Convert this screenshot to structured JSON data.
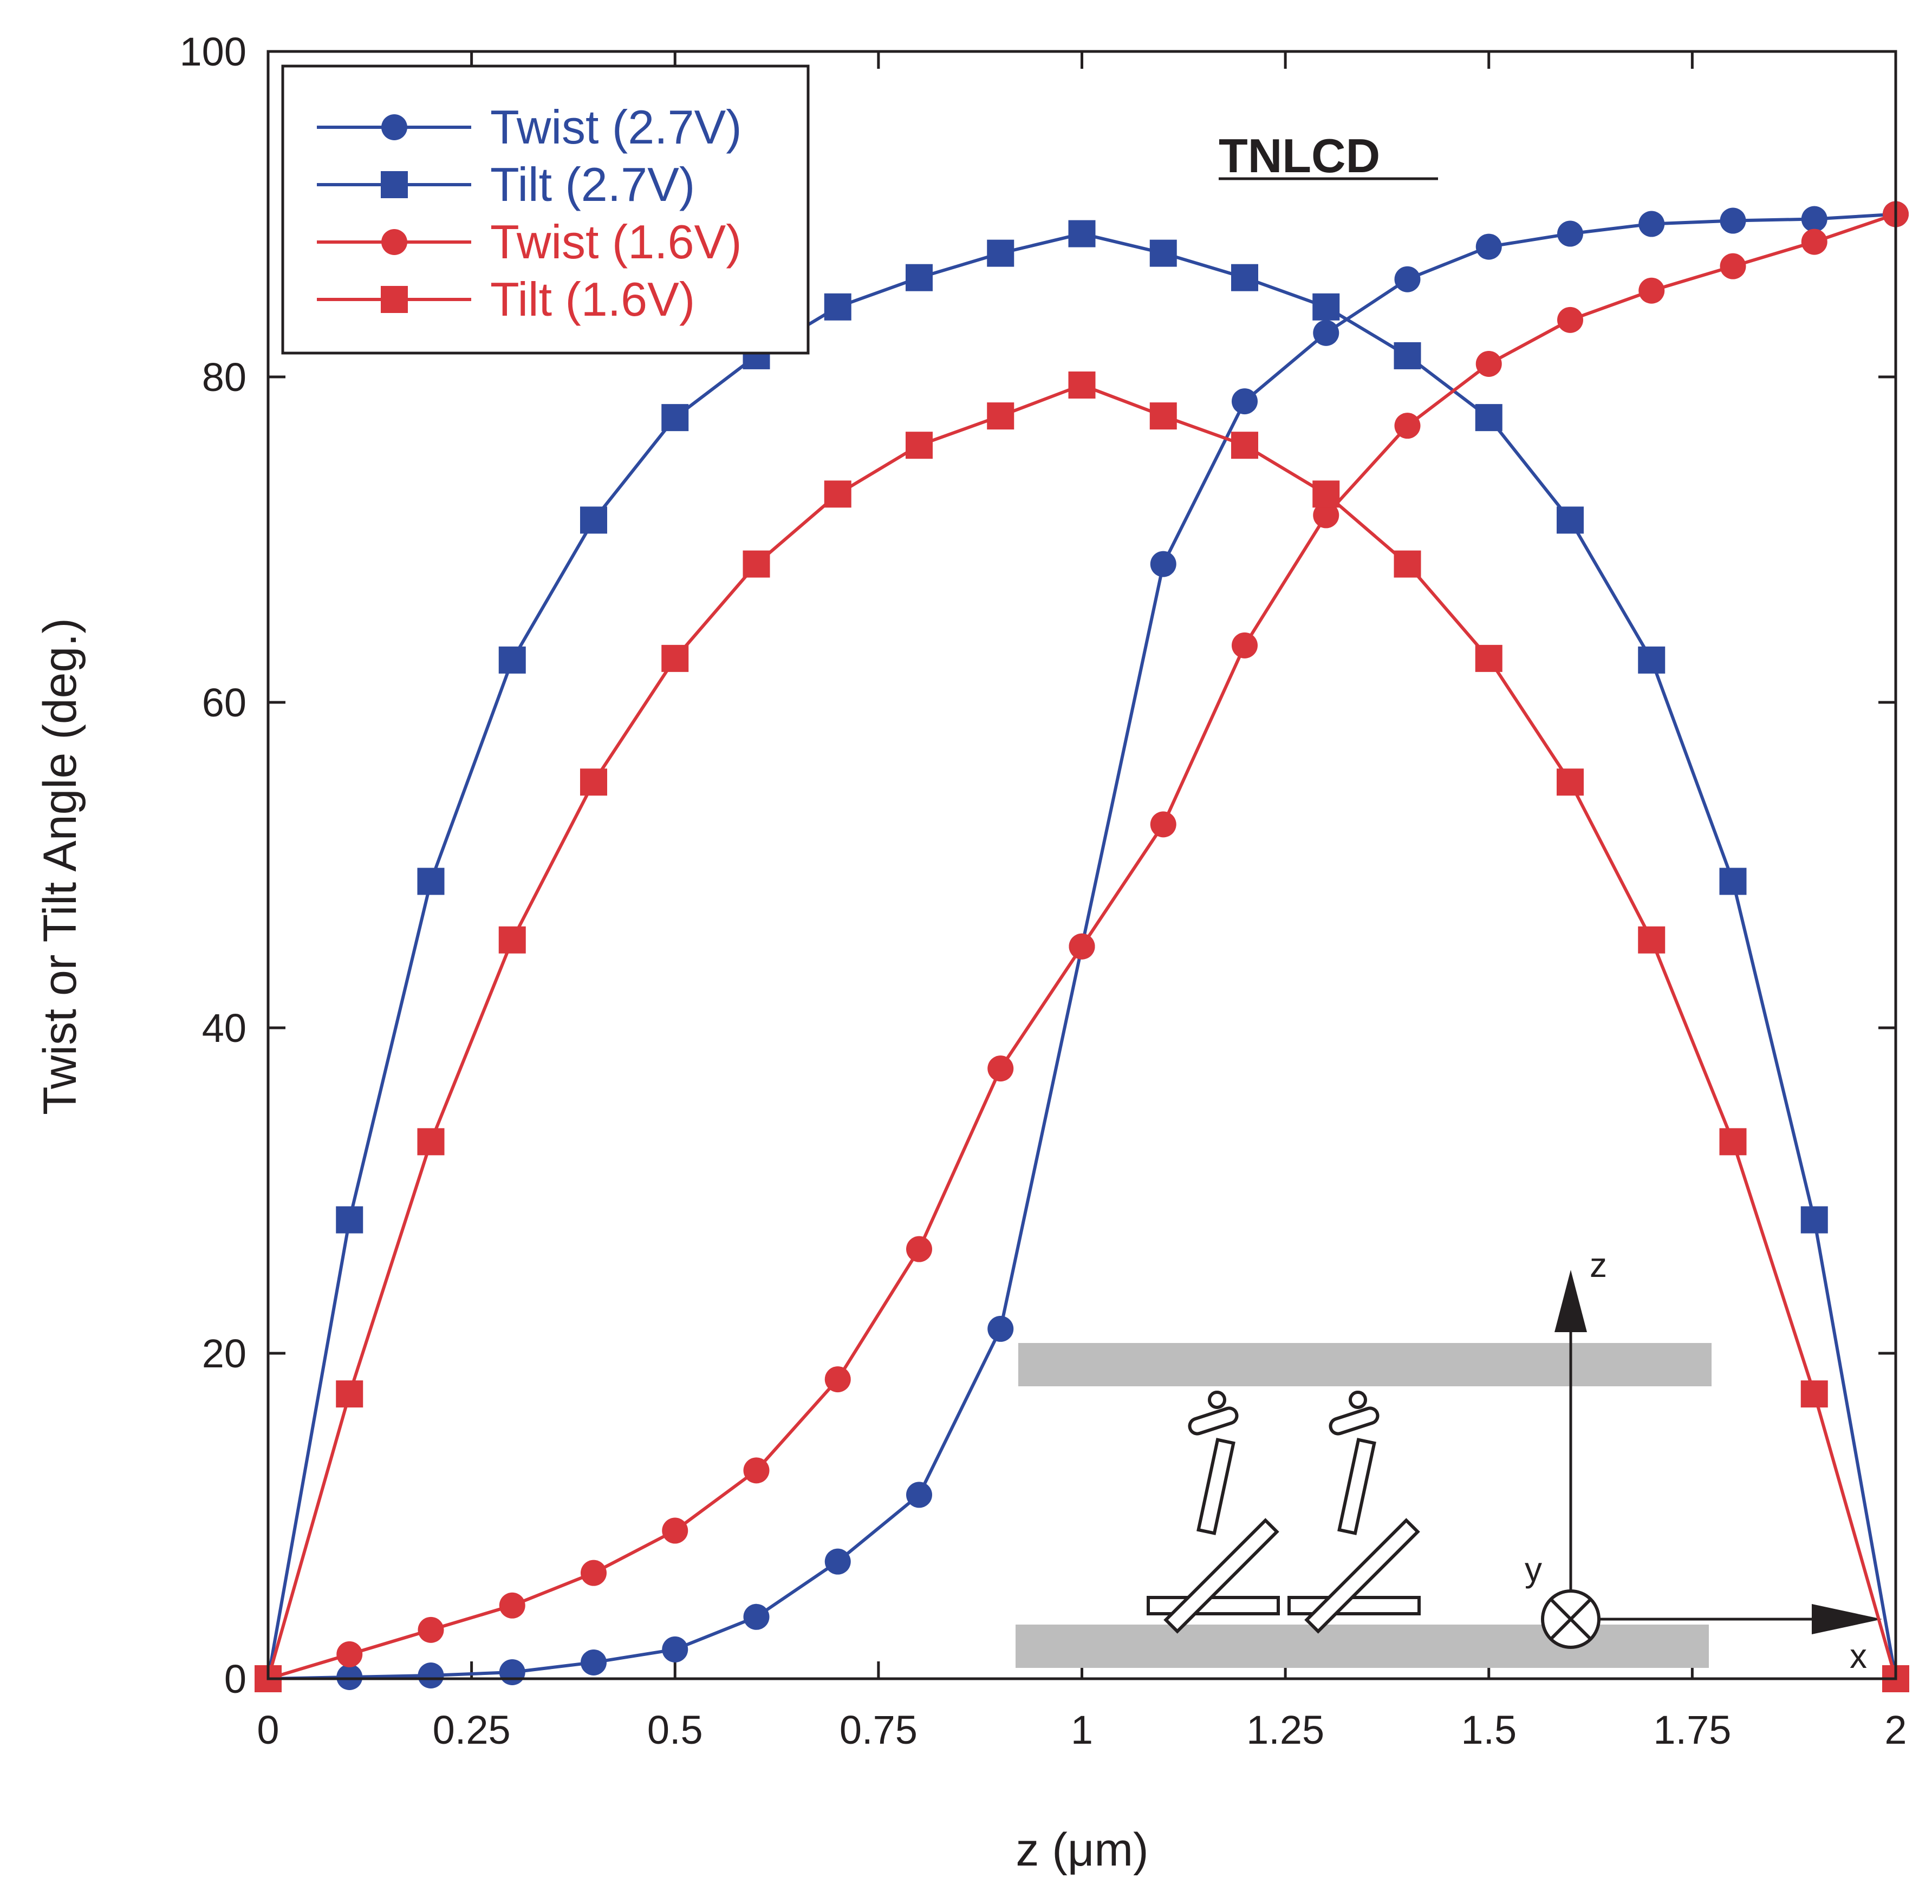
{
  "chart_data": {
    "type": "line",
    "title": "",
    "annotation": "TNLCD",
    "xlabel": "z  (μm)",
    "ylabel": "Twist or Tilt Angle (deg.)",
    "xlim": [
      0,
      2
    ],
    "ylim": [
      0,
      100
    ],
    "grid": false,
    "legend_position": "top-left",
    "x_ticks": [
      {
        "value": 0,
        "label": "0"
      },
      {
        "value": 0.25,
        "label": "0.25"
      },
      {
        "value": 0.5,
        "label": "0.5"
      },
      {
        "value": 0.75,
        "label": "0.75"
      },
      {
        "value": 1,
        "label": "1"
      },
      {
        "value": 1.25,
        "label": "1.25"
      },
      {
        "value": 1.5,
        "label": "1.5"
      },
      {
        "value": 1.75,
        "label": "1.75"
      },
      {
        "value": 2,
        "label": "2"
      }
    ],
    "y_ticks": [
      {
        "value": 0,
        "label": "0"
      },
      {
        "value": 20,
        "label": "20"
      },
      {
        "value": 40,
        "label": "40"
      },
      {
        "value": 60,
        "label": "60"
      },
      {
        "value": 80,
        "label": "80"
      },
      {
        "value": 100,
        "label": "100"
      }
    ],
    "x": [
      0,
      0.1,
      0.2,
      0.3,
      0.4,
      0.5,
      0.6,
      0.7,
      0.8,
      0.9,
      1.0,
      1.1,
      1.2,
      1.3,
      1.4,
      1.5,
      1.6,
      1.7,
      1.8,
      1.9,
      2.0
    ],
    "series": [
      {
        "name": "Twist (2.7V)",
        "color": "#2e4a9e",
        "marker": "circle",
        "values": [
          0,
          0.1,
          0.2,
          0.4,
          1.0,
          1.8,
          3.8,
          7.2,
          11.3,
          21.5,
          45.0,
          68.5,
          78.5,
          82.7,
          86.0,
          88.0,
          88.8,
          89.4,
          89.6,
          89.7,
          90.0
        ]
      },
      {
        "name": "Tilt (2.7V)",
        "color": "#2e4a9e",
        "marker": "square",
        "values": [
          0,
          28.2,
          49.0,
          62.6,
          71.2,
          77.5,
          81.3,
          84.3,
          86.1,
          87.6,
          88.8,
          87.6,
          86.1,
          84.3,
          81.3,
          77.5,
          71.2,
          62.6,
          49.0,
          28.2,
          0
        ]
      },
      {
        "name": "Twist (1.6V)",
        "color": "#d9353b",
        "marker": "circle",
        "values": [
          0,
          1.5,
          3.0,
          4.5,
          6.5,
          9.1,
          12.8,
          18.4,
          26.4,
          37.5,
          45.0,
          52.5,
          63.5,
          71.5,
          77.0,
          80.8,
          83.5,
          85.3,
          86.8,
          88.3,
          90.0
        ]
      },
      {
        "name": "Tilt (1.6V)",
        "color": "#d9353b",
        "marker": "square",
        "values": [
          0,
          17.5,
          33.0,
          45.4,
          55.1,
          62.7,
          68.5,
          72.8,
          75.8,
          77.6,
          79.5,
          77.6,
          75.8,
          72.8,
          68.5,
          62.7,
          55.1,
          45.4,
          33.0,
          17.5,
          0
        ]
      }
    ],
    "inset_diagram": {
      "axis_labels": {
        "z": "z",
        "y": "y",
        "x": "x"
      }
    }
  }
}
